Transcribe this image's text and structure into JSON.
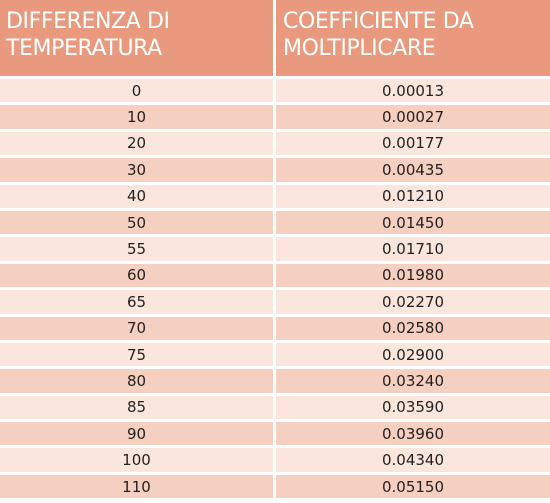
{
  "table": {
    "headers": [
      "DIFFERENZA DI TEMPERATURA",
      "COEFFICIENTE DA MOLTIPLICARE"
    ],
    "rows": [
      [
        "0",
        "0.00013"
      ],
      [
        "10",
        "0.00027"
      ],
      [
        "20",
        "0.00177"
      ],
      [
        "30",
        "0.00435"
      ],
      [
        "40",
        "0.01210"
      ],
      [
        "50",
        "0.01450"
      ],
      [
        "55",
        "0.01710"
      ],
      [
        "60",
        "0.01980"
      ],
      [
        "65",
        "0.02270"
      ],
      [
        "70",
        "0.02580"
      ],
      [
        "75",
        "0.02900"
      ],
      [
        "80",
        "0.03240"
      ],
      [
        "85",
        "0.03590"
      ],
      [
        "90",
        "0.03960"
      ],
      [
        "100",
        "0.04340"
      ],
      [
        "110",
        "0.05150"
      ]
    ]
  },
  "colors": {
    "header_bg": "#e99a7e",
    "row_light": "#fbe6dd",
    "row_dark": "#f5cfbf",
    "text": "#231f20"
  }
}
